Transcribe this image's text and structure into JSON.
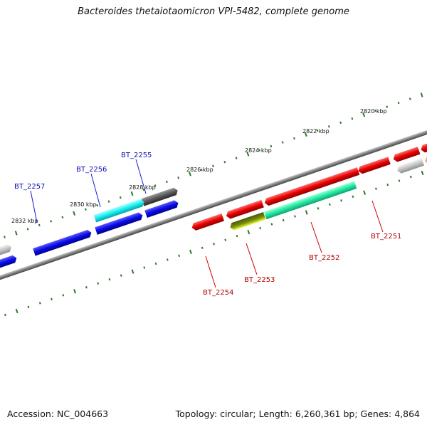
{
  "title": "Bacteroides thetaiotaomicron VPI-5482, complete genome",
  "kbp_labels": [
    "2820 kbp",
    "2822 kbp",
    "2824 kbp",
    "2826 kbp",
    "2828 kbp",
    "2830 kbp",
    "2832 kbp"
  ],
  "gene_labels": {
    "bt2257": "BT_2257",
    "bt2256": "BT_2256",
    "bt2255": "BT_2255",
    "bt2254": "BT_2254",
    "bt2253": "BT_2253",
    "bt2252": "BT_2252",
    "bt2251": "BT_2251"
  },
  "colors": {
    "blue": "#0a0ae6",
    "red": "#e60000",
    "cyan": "#14f0f0",
    "gray": "#666666",
    "spring": "#22e8a0",
    "olive": "#7a8a10",
    "tick": "#2a7a2a",
    "backbone": "#808080"
  },
  "footer": {
    "accession": "Accession: NC_004663",
    "summary": "Topology: circular; Length: 6,260,361 bp; Genes: 4,864"
  }
}
